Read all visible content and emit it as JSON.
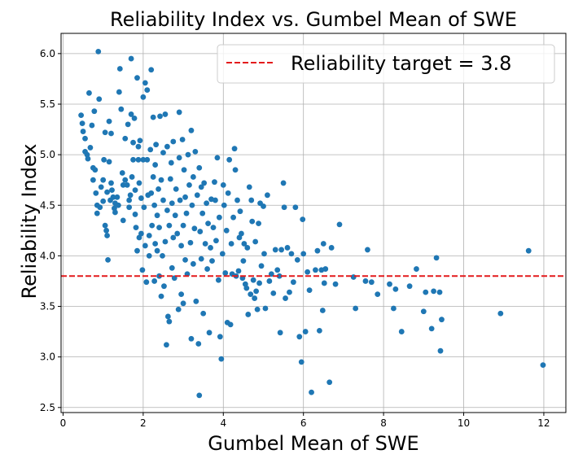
{
  "chart_data": {
    "type": "scatter",
    "title": "Reliability Index vs. Gumbel Mean of SWE",
    "xlabel": "Gumbel Mean of SWE",
    "ylabel": "Reliability Index",
    "xlim": [
      -0.05,
      12.55
    ],
    "ylim": [
      2.45,
      6.2
    ],
    "xticks": [
      0,
      2,
      4,
      6,
      8,
      10,
      12
    ],
    "yticks": [
      2.5,
      3.0,
      3.5,
      4.0,
      4.5,
      5.0,
      5.5,
      6.0
    ],
    "xtick_labels": [
      "0",
      "2",
      "4",
      "6",
      "8",
      "10",
      "12"
    ],
    "ytick_labels": [
      "2.5",
      "3.0",
      "3.5",
      "4.0",
      "4.5",
      "5.0",
      "5.5",
      "6.0"
    ],
    "grid": true,
    "legend_position": "top-right",
    "marker_color": "#1f77b4",
    "reference_line": {
      "y": 3.8,
      "label": "Reliability target = 3.8",
      "color": "#e31a1c",
      "style": "dashed"
    },
    "points": [
      [
        0.45,
        5.39
      ],
      [
        0.48,
        5.31
      ],
      [
        0.5,
        5.23
      ],
      [
        0.55,
        5.16
      ],
      [
        0.55,
        5.03
      ],
      [
        0.6,
        5.0
      ],
      [
        0.62,
        4.96
      ],
      [
        0.65,
        5.61
      ],
      [
        0.68,
        5.07
      ],
      [
        0.72,
        5.29
      ],
      [
        0.75,
        4.87
      ],
      [
        0.75,
        4.75
      ],
      [
        0.78,
        5.43
      ],
      [
        0.8,
        4.85
      ],
      [
        0.82,
        4.62
      ],
      [
        0.85,
        4.5
      ],
      [
        0.85,
        4.42
      ],
      [
        0.88,
        6.02
      ],
      [
        0.9,
        5.55
      ],
      [
        0.92,
        4.48
      ],
      [
        0.95,
        4.68
      ],
      [
        1.0,
        4.54
      ],
      [
        1.0,
        4.75
      ],
      [
        1.02,
        4.95
      ],
      [
        1.05,
        5.22
      ],
      [
        1.05,
        4.3
      ],
      [
        1.08,
        4.25
      ],
      [
        1.1,
        4.2
      ],
      [
        1.1,
        4.63
      ],
      [
        1.12,
        3.96
      ],
      [
        1.15,
        5.33
      ],
      [
        1.15,
        4.93
      ],
      [
        1.18,
        4.55
      ],
      [
        1.2,
        5.21
      ],
      [
        1.2,
        4.72
      ],
      [
        1.22,
        4.65
      ],
      [
        1.25,
        4.58
      ],
      [
        1.28,
        4.47
      ],
      [
        1.3,
        4.43
      ],
      [
        1.3,
        4.52
      ],
      [
        1.35,
        4.58
      ],
      [
        1.38,
        4.5
      ],
      [
        1.4,
        5.62
      ],
      [
        1.42,
        5.85
      ],
      [
        1.45,
        5.45
      ],
      [
        1.48,
        4.82
      ],
      [
        1.5,
        4.7
      ],
      [
        1.5,
        4.35
      ],
      [
        1.55,
        4.75
      ],
      [
        1.55,
        5.16
      ],
      [
        1.6,
        4.7
      ],
      [
        1.62,
        5.3
      ],
      [
        1.65,
        4.48
      ],
      [
        1.65,
        4.55
      ],
      [
        1.68,
        4.6
      ],
      [
        1.7,
        5.95
      ],
      [
        1.7,
        5.4
      ],
      [
        1.72,
        4.78
      ],
      [
        1.75,
        5.12
      ],
      [
        1.75,
        4.95
      ],
      [
        1.78,
        5.36
      ],
      [
        1.8,
        4.65
      ],
      [
        1.8,
        4.41
      ],
      [
        1.82,
        4.28
      ],
      [
        1.85,
        4.05
      ],
      [
        1.85,
        5.76
      ],
      [
        1.88,
        4.95
      ],
      [
        1.88,
        5.08
      ],
      [
        1.9,
        4.72
      ],
      [
        1.9,
        4.18
      ],
      [
        1.92,
        5.14
      ],
      [
        1.95,
        4.57
      ],
      [
        1.95,
        4.22
      ],
      [
        1.98,
        3.86
      ],
      [
        2.0,
        5.57
      ],
      [
        2.0,
        4.95
      ],
      [
        2.02,
        4.48
      ],
      [
        2.05,
        5.71
      ],
      [
        2.05,
        4.1
      ],
      [
        2.08,
        3.74
      ],
      [
        2.1,
        5.64
      ],
      [
        2.1,
        4.95
      ],
      [
        2.12,
        4.6
      ],
      [
        2.15,
        4.2
      ],
      [
        2.15,
        4.0
      ],
      [
        2.18,
        5.05
      ],
      [
        2.2,
        5.84
      ],
      [
        2.2,
        4.62
      ],
      [
        2.22,
        4.3
      ],
      [
        2.25,
        5.37
      ],
      [
        2.25,
        4.78
      ],
      [
        2.28,
        4.5
      ],
      [
        2.28,
        3.75
      ],
      [
        2.3,
        4.9
      ],
      [
        2.3,
        4.12
      ],
      [
        2.32,
        5.1
      ],
      [
        2.35,
        4.05
      ],
      [
        2.35,
        4.4
      ],
      [
        2.38,
        4.66
      ],
      [
        2.4,
        3.8
      ],
      [
        2.4,
        4.28
      ],
      [
        2.42,
        5.38
      ],
      [
        2.45,
        4.75
      ],
      [
        2.45,
        3.6
      ],
      [
        2.48,
        4.0
      ],
      [
        2.5,
        5.02
      ],
      [
        2.5,
        4.55
      ],
      [
        2.52,
        3.7
      ],
      [
        2.55,
        5.4
      ],
      [
        2.55,
        4.14
      ],
      [
        2.58,
        3.12
      ],
      [
        2.6,
        5.08
      ],
      [
        2.6,
        4.45
      ],
      [
        2.62,
        3.4
      ],
      [
        2.65,
        4.3
      ],
      [
        2.65,
        3.35
      ],
      [
        2.68,
        4.76
      ],
      [
        2.7,
        4.92
      ],
      [
        2.72,
        4.52
      ],
      [
        2.72,
        3.88
      ],
      [
        2.75,
        5.13
      ],
      [
        2.75,
        4.18
      ],
      [
        2.78,
        3.78
      ],
      [
        2.8,
        4.4
      ],
      [
        2.82,
        4.66
      ],
      [
        2.85,
        4.22
      ],
      [
        2.88,
        3.47
      ],
      [
        2.9,
        5.42
      ],
      [
        2.9,
        4.97
      ],
      [
        2.92,
        4.55
      ],
      [
        2.95,
        4.1
      ],
      [
        2.95,
        3.62
      ],
      [
        2.98,
        5.15
      ],
      [
        3.0,
        4.3
      ],
      [
        3.0,
        3.53
      ],
      [
        3.02,
        4.85
      ],
      [
        3.05,
        4.58
      ],
      [
        3.05,
        3.96
      ],
      [
        3.08,
        4.42
      ],
      [
        3.1,
        3.82
      ],
      [
        3.12,
        5.0
      ],
      [
        3.15,
        4.7
      ],
      [
        3.18,
        4.13
      ],
      [
        3.2,
        3.18
      ],
      [
        3.2,
        5.24
      ],
      [
        3.22,
        4.5
      ],
      [
        3.25,
        4.78
      ],
      [
        3.25,
        3.92
      ],
      [
        3.28,
        4.27
      ],
      [
        3.3,
        5.03
      ],
      [
        3.32,
        3.55
      ],
      [
        3.35,
        4.6
      ],
      [
        3.38,
        3.13
      ],
      [
        3.4,
        2.62
      ],
      [
        3.4,
        4.87
      ],
      [
        3.42,
        4.24
      ],
      [
        3.45,
        4.68
      ],
      [
        3.45,
        3.97
      ],
      [
        3.48,
        4.42
      ],
      [
        3.5,
        3.43
      ],
      [
        3.52,
        4.72
      ],
      [
        3.55,
        4.12
      ],
      [
        3.58,
        4.52
      ],
      [
        3.6,
        3.87
      ],
      [
        3.62,
        4.32
      ],
      [
        3.65,
        3.24
      ],
      [
        3.68,
        4.08
      ],
      [
        3.7,
        4.56
      ],
      [
        3.72,
        3.95
      ],
      [
        3.75,
        4.28
      ],
      [
        3.78,
        4.73
      ],
      [
        3.8,
        4.55
      ],
      [
        3.82,
        4.15
      ],
      [
        3.85,
        4.97
      ],
      [
        3.88,
        3.76
      ],
      [
        3.9,
        4.38
      ],
      [
        3.92,
        3.2
      ],
      [
        3.95,
        2.98
      ],
      [
        3.98,
        4.02
      ],
      [
        4.0,
        4.7
      ],
      [
        4.02,
        4.5
      ],
      [
        4.05,
        3.83
      ],
      [
        4.08,
        4.25
      ],
      [
        4.1,
        3.34
      ],
      [
        4.12,
        4.62
      ],
      [
        4.15,
        4.95
      ],
      [
        4.18,
        3.32
      ],
      [
        4.2,
        4.12
      ],
      [
        4.22,
        3.82
      ],
      [
        4.25,
        4.38
      ],
      [
        4.28,
        5.06
      ],
      [
        4.3,
        4.85
      ],
      [
        4.32,
        3.8
      ],
      [
        4.35,
        4.55
      ],
      [
        4.38,
        3.85
      ],
      [
        4.4,
        4.18
      ],
      [
        4.42,
        4.44
      ],
      [
        4.45,
        4.22
      ],
      [
        4.48,
        3.78
      ],
      [
        4.5,
        3.95
      ],
      [
        4.52,
        4.12
      ],
      [
        4.55,
        3.72
      ],
      [
        4.58,
        3.68
      ],
      [
        4.6,
        4.08
      ],
      [
        4.62,
        3.42
      ],
      [
        4.65,
        4.68
      ],
      [
        4.68,
        3.62
      ],
      [
        4.7,
        4.55
      ],
      [
        4.72,
        4.34
      ],
      [
        4.75,
        3.76
      ],
      [
        4.78,
        3.58
      ],
      [
        4.8,
        4.14
      ],
      [
        4.82,
        3.65
      ],
      [
        4.85,
        3.47
      ],
      [
        4.88,
        4.32
      ],
      [
        4.9,
        3.73
      ],
      [
        4.92,
        4.52
      ],
      [
        4.95,
        3.9
      ],
      [
        5.0,
        4.49
      ],
      [
        5.02,
        4.02
      ],
      [
        5.05,
        3.48
      ],
      [
        5.1,
        4.6
      ],
      [
        5.15,
        3.75
      ],
      [
        5.2,
        3.82
      ],
      [
        5.25,
        3.63
      ],
      [
        5.3,
        4.06
      ],
      [
        5.35,
        3.86
      ],
      [
        5.4,
        3.8
      ],
      [
        5.42,
        3.24
      ],
      [
        5.45,
        4.06
      ],
      [
        5.5,
        4.72
      ],
      [
        5.52,
        4.48
      ],
      [
        5.55,
        3.58
      ],
      [
        5.6,
        4.08
      ],
      [
        5.65,
        3.64
      ],
      [
        5.7,
        4.02
      ],
      [
        5.75,
        3.74
      ],
      [
        5.8,
        4.48
      ],
      [
        5.85,
        3.96
      ],
      [
        5.9,
        3.2
      ],
      [
        5.95,
        2.95
      ],
      [
        5.98,
        4.36
      ],
      [
        6.0,
        4.02
      ],
      [
        6.05,
        3.25
      ],
      [
        6.1,
        3.84
      ],
      [
        6.15,
        3.66
      ],
      [
        6.2,
        2.65
      ],
      [
        6.3,
        3.86
      ],
      [
        6.35,
        4.05
      ],
      [
        6.4,
        3.26
      ],
      [
        6.45,
        3.86
      ],
      [
        6.48,
        3.46
      ],
      [
        6.5,
        4.12
      ],
      [
        6.52,
        3.73
      ],
      [
        6.55,
        3.87
      ],
      [
        6.65,
        2.75
      ],
      [
        6.7,
        4.08
      ],
      [
        6.8,
        3.72
      ],
      [
        6.9,
        4.31
      ],
      [
        7.25,
        3.79
      ],
      [
        7.3,
        3.48
      ],
      [
        7.55,
        3.75
      ],
      [
        7.6,
        4.06
      ],
      [
        7.7,
        3.74
      ],
      [
        7.85,
        3.62
      ],
      [
        8.15,
        3.72
      ],
      [
        8.25,
        3.48
      ],
      [
        8.3,
        3.67
      ],
      [
        8.45,
        3.25
      ],
      [
        8.65,
        3.7
      ],
      [
        8.82,
        3.87
      ],
      [
        9.0,
        3.45
      ],
      [
        9.05,
        3.64
      ],
      [
        9.2,
        3.28
      ],
      [
        9.25,
        3.65
      ],
      [
        9.32,
        3.98
      ],
      [
        9.42,
        3.06
      ],
      [
        9.45,
        3.37
      ],
      [
        9.4,
        3.64
      ],
      [
        10.92,
        3.43
      ],
      [
        11.62,
        4.05
      ],
      [
        11.98,
        2.92
      ]
    ]
  }
}
